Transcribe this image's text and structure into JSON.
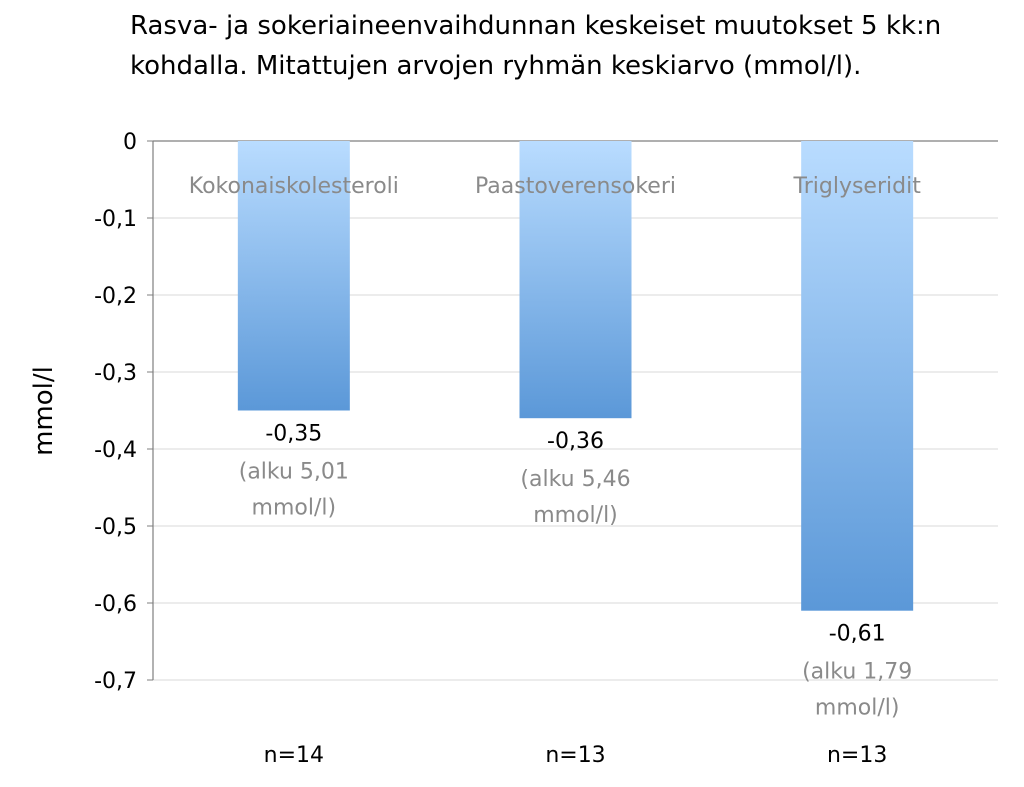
{
  "title": "Rasva- ja sokeriaineenvaihdunnan keskeiset muutokset 5 kk:n kohdalla. Mitattujen arvojen ryhmän keskiarvo (mmol/l).",
  "chart_data": {
    "type": "bar",
    "categories": [
      "Kokonaiskolesteroli",
      "Paastoverensokeri",
      "Triglyseridit"
    ],
    "values": [
      -0.35,
      -0.36,
      -0.61
    ],
    "value_labels": [
      "-0,35",
      "-0,36",
      "-0,61"
    ],
    "baseline_notes": [
      [
        "(alku 5,01",
        "mmol/l)"
      ],
      [
        "(alku 5,46",
        "mmol/l)"
      ],
      [
        "(alku 1,79",
        "mmol/l)"
      ]
    ],
    "group_sizes": [
      "n=14",
      "n=13",
      "n=13"
    ],
    "ylabel": "mmol/l",
    "ylim": [
      -0.7,
      0
    ],
    "yticks": [
      0,
      -0.1,
      -0.2,
      -0.3,
      -0.4,
      -0.5,
      -0.6,
      -0.7
    ],
    "ytick_labels": [
      "0",
      "-0,1",
      "-0,2",
      "-0,3",
      "-0,4",
      "-0,5",
      "-0,6",
      "-0,7"
    ],
    "grid": true,
    "bar_color_light": "#b9dcff",
    "bar_color_dark": "#5b98d8"
  }
}
